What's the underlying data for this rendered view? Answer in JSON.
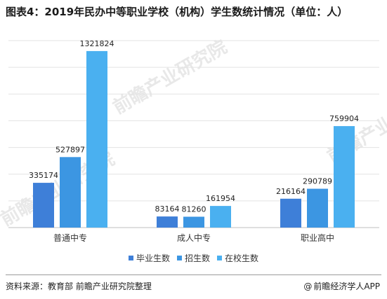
{
  "title": "图表4：2019年民办中等职业学校（机构）学生数统计情况（单位：人）",
  "chart_data": {
    "type": "bar",
    "categories": [
      "普通中专",
      "成人中专",
      "职业高中"
    ],
    "series": [
      {
        "name": "毕业生数",
        "color": "#3e7fd8",
        "values": [
          335174,
          83164,
          216164
        ]
      },
      {
        "name": "招生数",
        "color": "#3c96e2",
        "values": [
          527897,
          81260,
          290789
        ]
      },
      {
        "name": "在校生数",
        "color": "#4ab0f0",
        "values": [
          1321824,
          161954,
          759904
        ]
      }
    ],
    "ylim": [
      0,
      1400000
    ],
    "grid": true,
    "legend": "bottom"
  },
  "footer": {
    "source": "资料来源：教育部 前瞻产业研究院整理",
    "brand": "前瞻经济学人APP",
    "brand_icon": "@"
  },
  "watermark": "前瞻产业研究院"
}
